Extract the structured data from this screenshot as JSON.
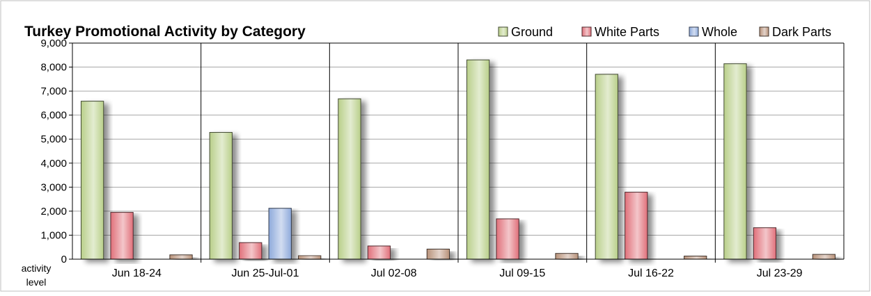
{
  "chart_data": {
    "type": "bar",
    "title": "Turkey Promotional Activity by Category",
    "ylabel": "activity\nlevel",
    "xlabel": "",
    "ylim": [
      0,
      9000
    ],
    "yticks": [
      "0",
      "1,000",
      "2,000",
      "3,000",
      "4,000",
      "5,000",
      "6,000",
      "7,000",
      "8,000",
      "9,000"
    ],
    "grid": true,
    "legend_position": "top-right",
    "categories": [
      "Jun 18-24",
      "Jun 25-Jul-01",
      "Jul 02-08",
      "Jul 09-15",
      "Jul 16-22",
      "Jul 23-29"
    ],
    "series": [
      {
        "name": "Ground",
        "color": "#b9cf8a",
        "values": [
          6580,
          5280,
          6680,
          8300,
          7700,
          8140
        ]
      },
      {
        "name": "White Parts",
        "color": "#e0707a",
        "values": [
          1950,
          690,
          550,
          1680,
          2790,
          1310
        ]
      },
      {
        "name": "Whole",
        "color": "#8eaadb",
        "values": [
          0,
          2120,
          0,
          0,
          0,
          0
        ]
      },
      {
        "name": "Dark Parts",
        "color": "#b8927a",
        "values": [
          180,
          150,
          420,
          240,
          130,
          200
        ]
      }
    ]
  }
}
